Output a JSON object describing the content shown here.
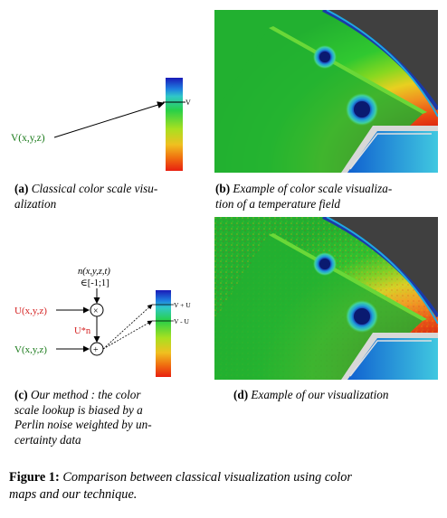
{
  "panel_a": {
    "input_label": "V(x,y,z)",
    "scale_marker": "V",
    "caption_tag": "(a)",
    "caption_line1": "Classical color scale visu-",
    "caption_line2": "alization"
  },
  "panel_b": {
    "caption_tag": "(b)",
    "caption_line1": "Example of color scale visualiza-",
    "caption_line2": "tion of a temperature field"
  },
  "panel_c": {
    "noise_label": "n(x,y,z,t)",
    "noise_range": "∈[-1;1]",
    "u_label": "U(x,y,z)",
    "product_label": "U*n",
    "v_label": "V(x,y,z)",
    "times_symbol": "×",
    "plus_symbol": "+",
    "upper_marker": "V + U",
    "lower_marker": "V - U",
    "caption_tag": "(c)",
    "caption_line1": "Our method :  the color",
    "caption_line2": "scale lookup is biased by a",
    "caption_line3": "Perlin noise weighted by un-",
    "caption_line4": "certainty data"
  },
  "panel_d": {
    "caption_tag": "(d)",
    "caption_line1": "Example of our visualization"
  },
  "figure_caption": {
    "label": "Figure 1:",
    "text_line1": "Comparison between classical visualization using color",
    "text_line2": "maps and our technique."
  },
  "colors": {
    "green_label": "#1a7a1a",
    "red_label": "#d42020",
    "scale_top": "#1020c0",
    "scale_mid": "#20d040",
    "scale_bottom": "#e02010"
  }
}
